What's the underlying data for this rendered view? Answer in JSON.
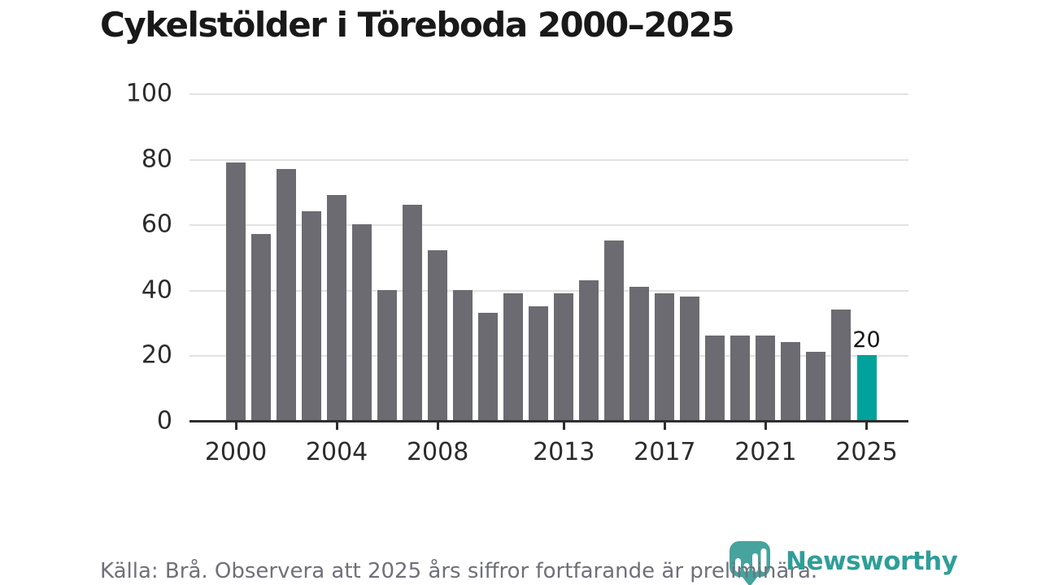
{
  "title": "Cykelstölder i Töreboda 2000–2025",
  "chart_data": {
    "type": "bar",
    "x": [
      2000,
      2001,
      2002,
      2003,
      2004,
      2005,
      2006,
      2007,
      2008,
      2009,
      2010,
      2011,
      2012,
      2013,
      2014,
      2015,
      2016,
      2017,
      2018,
      2019,
      2020,
      2021,
      2022,
      2023,
      2024,
      2025
    ],
    "values": [
      79,
      57,
      77,
      64,
      69,
      60,
      40,
      66,
      52,
      40,
      33,
      39,
      35,
      39,
      43,
      55,
      41,
      39,
      38,
      26,
      26,
      26,
      24,
      21,
      34,
      20
    ],
    "title": "Cykelstölder i Töreboda 2000–2025",
    "xlabel": "",
    "ylabel": "",
    "ylim": [
      0,
      100
    ],
    "y_ticks": [
      0,
      20,
      40,
      60,
      80,
      100
    ],
    "x_tick_years": [
      2000,
      2004,
      2008,
      2013,
      2017,
      2021,
      2025
    ],
    "grid": true,
    "legend": "none",
    "bar_color": "#6b6b71",
    "highlight_year": 2025,
    "highlight_color": "#00a29b",
    "highlight_label": "20"
  },
  "footer": {
    "source_note": "Källa: Brå. Observera att 2025 års siffror fortfarande är preliminära."
  },
  "logo": {
    "wordmark": "Newsworthy",
    "icon": "newsworthy-badge-bar-chart-icon",
    "wordmark_color": "#2f9e98",
    "icon_color": "#46a39d"
  }
}
